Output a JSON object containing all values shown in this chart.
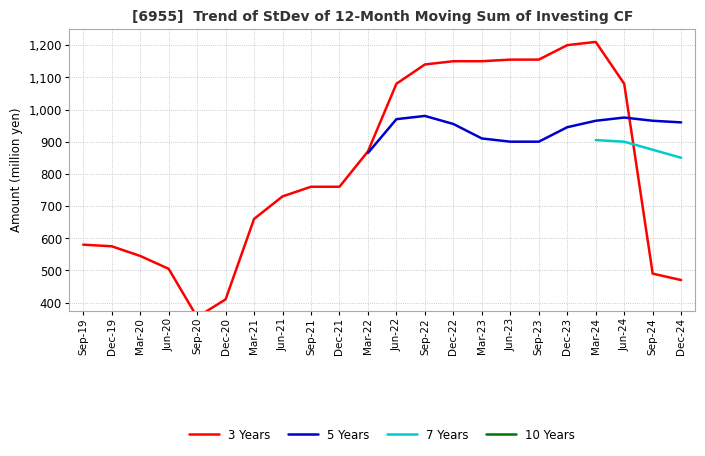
{
  "title": "[6955]  Trend of StDev of 12-Month Moving Sum of Investing CF",
  "ylabel": "Amount (million yen)",
  "ylim": [
    375,
    1250
  ],
  "yticks": [
    400,
    500,
    600,
    700,
    800,
    900,
    1000,
    1100,
    1200
  ],
  "background_color": "#ffffff",
  "grid_color": "#bbbbbb",
  "x_labels": [
    "Sep-19",
    "Dec-19",
    "Mar-20",
    "Jun-20",
    "Sep-20",
    "Dec-20",
    "Mar-21",
    "Jun-21",
    "Sep-21",
    "Dec-21",
    "Mar-22",
    "Jun-22",
    "Sep-22",
    "Dec-22",
    "Mar-23",
    "Jun-23",
    "Sep-23",
    "Dec-23",
    "Mar-24",
    "Jun-24",
    "Sep-24",
    "Dec-24"
  ],
  "series": {
    "3 Years": {
      "color": "#ff0000",
      "values": [
        580,
        575,
        545,
        505,
        355,
        410,
        660,
        730,
        760,
        760,
        870,
        1080,
        1140,
        1150,
        1150,
        1155,
        1155,
        1200,
        1210,
        1080,
        490,
        470
      ]
    },
    "5 Years": {
      "color": "#0000cc",
      "values": [
        null,
        null,
        null,
        null,
        null,
        null,
        null,
        null,
        null,
        null,
        865,
        970,
        980,
        955,
        910,
        900,
        900,
        945,
        965,
        975,
        965,
        960
      ]
    },
    "7 Years": {
      "color": "#00cccc",
      "values": [
        null,
        null,
        null,
        null,
        null,
        null,
        null,
        null,
        null,
        null,
        null,
        null,
        null,
        null,
        null,
        null,
        null,
        null,
        905,
        900,
        875,
        850
      ]
    },
    "10 Years": {
      "color": "#007700",
      "values": [
        null,
        null,
        null,
        null,
        null,
        null,
        null,
        null,
        null,
        null,
        null,
        null,
        null,
        null,
        null,
        null,
        null,
        null,
        null,
        null,
        null,
        null
      ]
    }
  },
  "legend_order": [
    "3 Years",
    "5 Years",
    "7 Years",
    "10 Years"
  ]
}
